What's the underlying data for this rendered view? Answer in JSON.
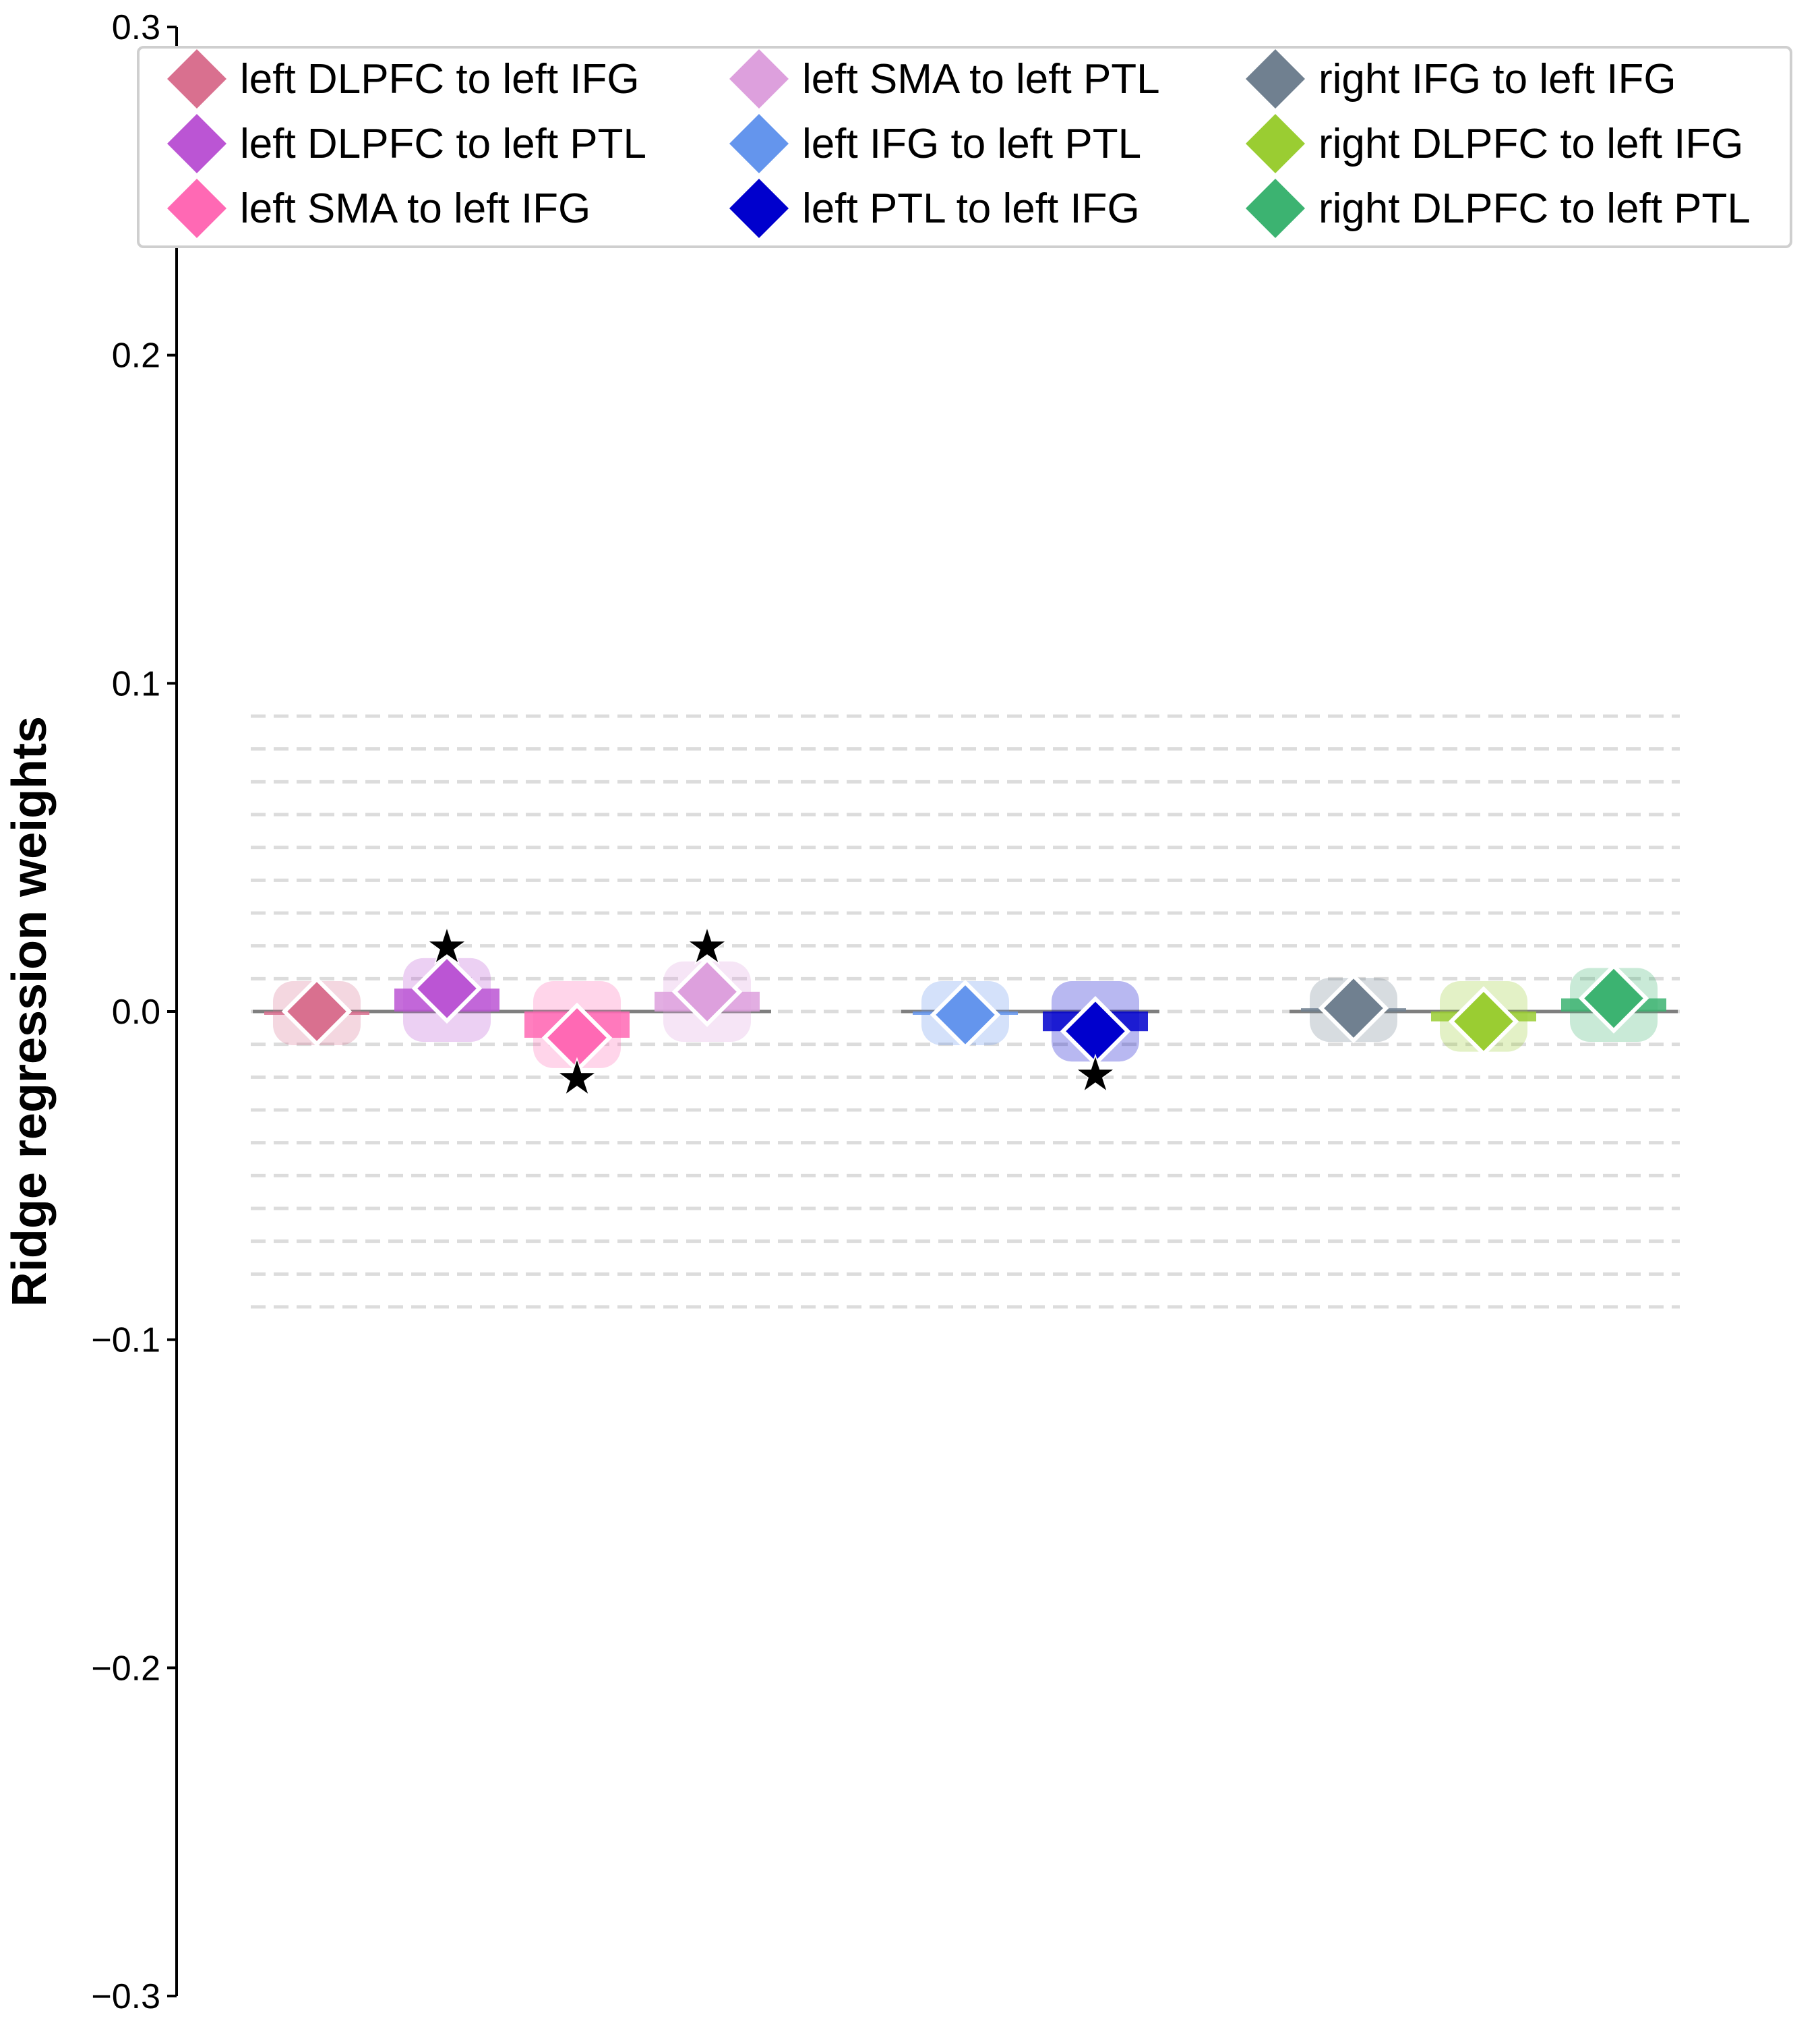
{
  "chart_data": {
    "type": "scatter",
    "title": "",
    "xlabel": "",
    "ylabel": "Ridge regression weights",
    "ylim": [
      -0.3,
      0.3
    ],
    "yticks": [
      0.3,
      0.2,
      0.1,
      0.0,
      -0.1,
      -0.2,
      -0.3
    ],
    "ytick_labels": [
      "0.3",
      "0.2",
      "0.1",
      "0.0",
      "−0.1",
      "−0.2",
      "−0.3"
    ],
    "reference_lines": [
      -0.09,
      -0.08,
      -0.07,
      -0.06,
      -0.05,
      -0.04,
      -0.03,
      -0.02,
      -0.01,
      0.0,
      0.01,
      0.02,
      0.03,
      0.04,
      0.05,
      0.06,
      0.07,
      0.08,
      0.09
    ],
    "legend_position": "top",
    "significance_marker": "★",
    "series": [
      {
        "name": "left DLPFC to left IFG",
        "color": "#d9708f",
        "group": 1,
        "value": 0.0,
        "significant": false,
        "star_y": null
      },
      {
        "name": "left DLPFC to left PTL",
        "color": "#bb55d4",
        "group": 1,
        "value": 0.007,
        "significant": true,
        "star_y": 0.02
      },
      {
        "name": "left SMA to left IFG",
        "color": "#ff69b4",
        "group": 1,
        "value": -0.008,
        "significant": true,
        "star_y": -0.02
      },
      {
        "name": "left SMA to left PTL",
        "color": "#dda0dd",
        "group": 1,
        "value": 0.006,
        "significant": true,
        "star_y": 0.02
      },
      {
        "name": "left IFG to left PTL",
        "color": "#6495ed",
        "group": 2,
        "value": -0.001,
        "significant": false,
        "star_y": null
      },
      {
        "name": "left PTL to left IFG",
        "color": "#0000cd",
        "group": 2,
        "value": -0.006,
        "significant": true,
        "star_y": -0.019
      },
      {
        "name": "right IFG to left IFG",
        "color": "#708090",
        "group": 3,
        "value": 0.001,
        "significant": false,
        "star_y": null
      },
      {
        "name": "right DLPFC to left IFG",
        "color": "#9acd32",
        "group": 3,
        "value": -0.003,
        "significant": false,
        "star_y": null
      },
      {
        "name": "right DLPFC to left PTL",
        "color": "#3cb371",
        "group": 3,
        "value": 0.004,
        "significant": false,
        "star_y": null
      }
    ]
  }
}
